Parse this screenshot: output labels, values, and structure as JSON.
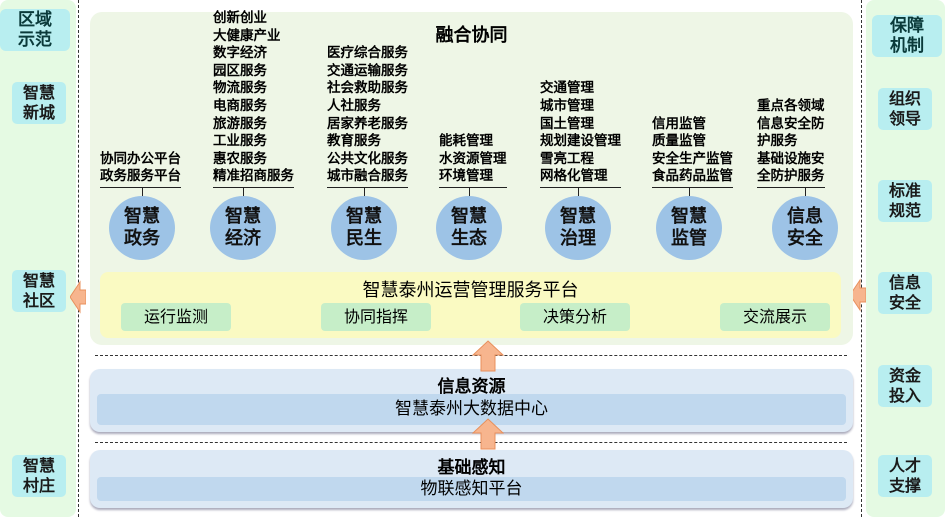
{
  "left": {
    "header": "区域示范",
    "items": [
      "智慧新城",
      "智慧社区",
      "智慧村庄"
    ]
  },
  "right": {
    "header": "保障机制",
    "items": [
      "组织领导",
      "标准规范",
      "信息安全",
      "资金投入",
      "人才支撑"
    ]
  },
  "top_panel": {
    "title": "融合协同",
    "columns": [
      {
        "circle": "智慧政务",
        "lines": [
          "协同办公平台",
          "政务服务平台"
        ]
      },
      {
        "circle": "智慧经济",
        "lines": [
          "创新创业",
          "大健康产业",
          "数字经济",
          "园区服务",
          "物流服务",
          "电商服务",
          "旅游服务",
          "工业服务",
          "惠农服务",
          "精准招商服务"
        ]
      },
      {
        "circle": "智慧民生",
        "lines": [
          "医疗综合服务",
          "交通运输服务",
          "社会救助服务",
          "人社服务",
          "居家养老服务",
          "教育服务",
          "公共文化服务",
          "城市融合服务"
        ]
      },
      {
        "circle": "智慧生态",
        "lines": [
          "能耗管理",
          "水资源管理",
          "环境管理"
        ]
      },
      {
        "circle": "智慧治理",
        "lines": [
          "交通管理",
          "城市管理",
          "国土管理",
          "规划建设管理",
          "雪亮工程",
          "网格化管理"
        ]
      },
      {
        "circle": "智慧监管",
        "lines": [
          "信用监管",
          "质量监管",
          "安全生产监管",
          "食品药品监管"
        ]
      },
      {
        "circle": "信息安全",
        "lines": [
          "重点各领域",
          "信息安全防",
          "护服务",
          "基础设施安",
          "全防护服务"
        ]
      }
    ],
    "platform": {
      "title": "智慧泰州运营管理服务平台",
      "buttons": [
        "运行监测",
        "协同指挥",
        "决策分析",
        "交流展示"
      ]
    }
  },
  "info_layer": {
    "title": "信息资源",
    "inner": "智慧泰州大数据中心"
  },
  "base_layer": {
    "title": "基础感知",
    "inner": "物联感知平台"
  },
  "colors": {
    "circle": "#9dc3e6",
    "platform": "#fafac2",
    "side": "#b8eef0",
    "arrow": "#f7b58e"
  }
}
